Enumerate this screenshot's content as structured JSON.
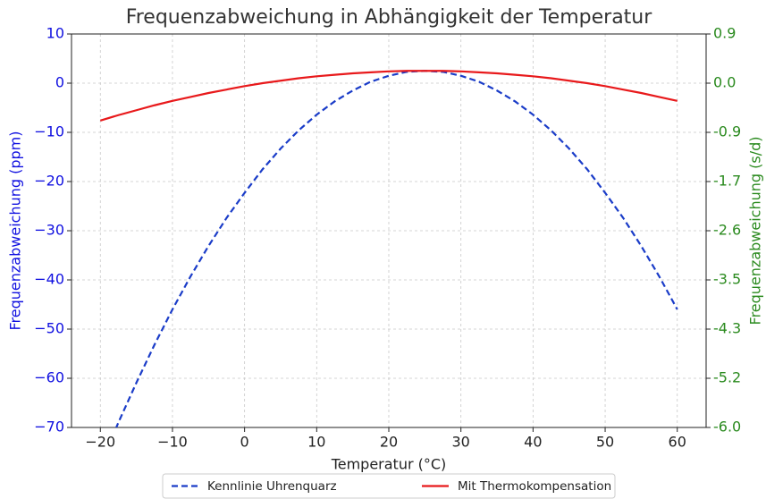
{
  "chart_data": {
    "type": "line",
    "title": "Frequenzabweichung in Abhängigkeit der Temperatur",
    "x_label": "Temperatur (°C)",
    "y_label": "Frequenzabweichung (ppm)",
    "y2_label": "Frequenzabweichung (s/d)",
    "x": [
      -20,
      -17.5,
      -15,
      -12.5,
      -10,
      -7.5,
      -5,
      -2.5,
      0,
      2.5,
      5,
      7.5,
      10,
      12.5,
      15,
      17.5,
      20,
      22.5,
      25,
      27.5,
      30,
      32.5,
      35,
      37.5,
      40,
      42.5,
      45,
      47.5,
      50,
      52.5,
      55,
      57.5,
      60
    ],
    "series": [
      {
        "name": "Kennlinie Uhrenquarz",
        "color": "#1a3cc8",
        "dash": true,
        "values": [
          -77.7,
          -69.0,
          -60.9,
          -53.2,
          -46.0,
          -39.3,
          -33.1,
          -27.4,
          -22.3,
          -17.5,
          -13.3,
          -9.6,
          -6.4,
          -3.7,
          -1.5,
          0.3,
          1.5,
          2.3,
          2.5,
          2.3,
          1.5,
          0.3,
          -1.5,
          -3.7,
          -6.4,
          -9.6,
          -13.3,
          -17.5,
          -22.3,
          -27.4,
          -33.1,
          -39.3,
          -46.0
        ]
      },
      {
        "name": "Mit Thermokompensation",
        "color": "#e8191b",
        "dash": false,
        "values": [
          -7.6,
          -6.5,
          -5.5,
          -4.5,
          -3.6,
          -2.8,
          -2.0,
          -1.3,
          -0.6,
          0.0,
          0.5,
          1.0,
          1.4,
          1.7,
          2.0,
          2.2,
          2.4,
          2.5,
          2.5,
          2.5,
          2.4,
          2.2,
          2.0,
          1.7,
          1.4,
          1.0,
          0.5,
          0.0,
          -0.6,
          -1.3,
          -2.0,
          -2.8,
          -3.6
        ]
      }
    ],
    "xlim": [
      -24,
      64
    ],
    "xticks": [
      {
        "value": -20,
        "label": "−20"
      },
      {
        "value": -10,
        "label": "−10"
      },
      0,
      10,
      20,
      30,
      40,
      50,
      60
    ],
    "ylim": [
      -70,
      10
    ],
    "yticks": [
      {
        "value": -70,
        "label": "−70"
      },
      {
        "value": -60,
        "label": "−60"
      },
      {
        "value": -50,
        "label": "−50"
      },
      {
        "value": -40,
        "label": "−40"
      },
      {
        "value": -30,
        "label": "−30"
      },
      {
        "value": -20,
        "label": "−20"
      },
      {
        "value": -10,
        "label": "−10"
      },
      0,
      10
    ],
    "y2lim": [
      -6.048,
      0.864
    ],
    "y2ticks": [
      {
        "value": -6.048,
        "label": "-6.0"
      },
      {
        "value": -5.184,
        "label": "-5.2"
      },
      {
        "value": -4.32,
        "label": "-4.3"
      },
      {
        "value": -3.456,
        "label": "-3.5"
      },
      {
        "value": -2.592,
        "label": "-2.6"
      },
      {
        "value": -1.728,
        "label": "-1.7"
      },
      {
        "value": -0.864,
        "label": "-0.9"
      },
      {
        "value": 0,
        "label": "0.0"
      },
      {
        "value": 0.864,
        "label": "0.9"
      }
    ],
    "y_color": "#1010e0",
    "y2_color": "#2a8a1e",
    "grid": true,
    "legend": "bottom"
  }
}
